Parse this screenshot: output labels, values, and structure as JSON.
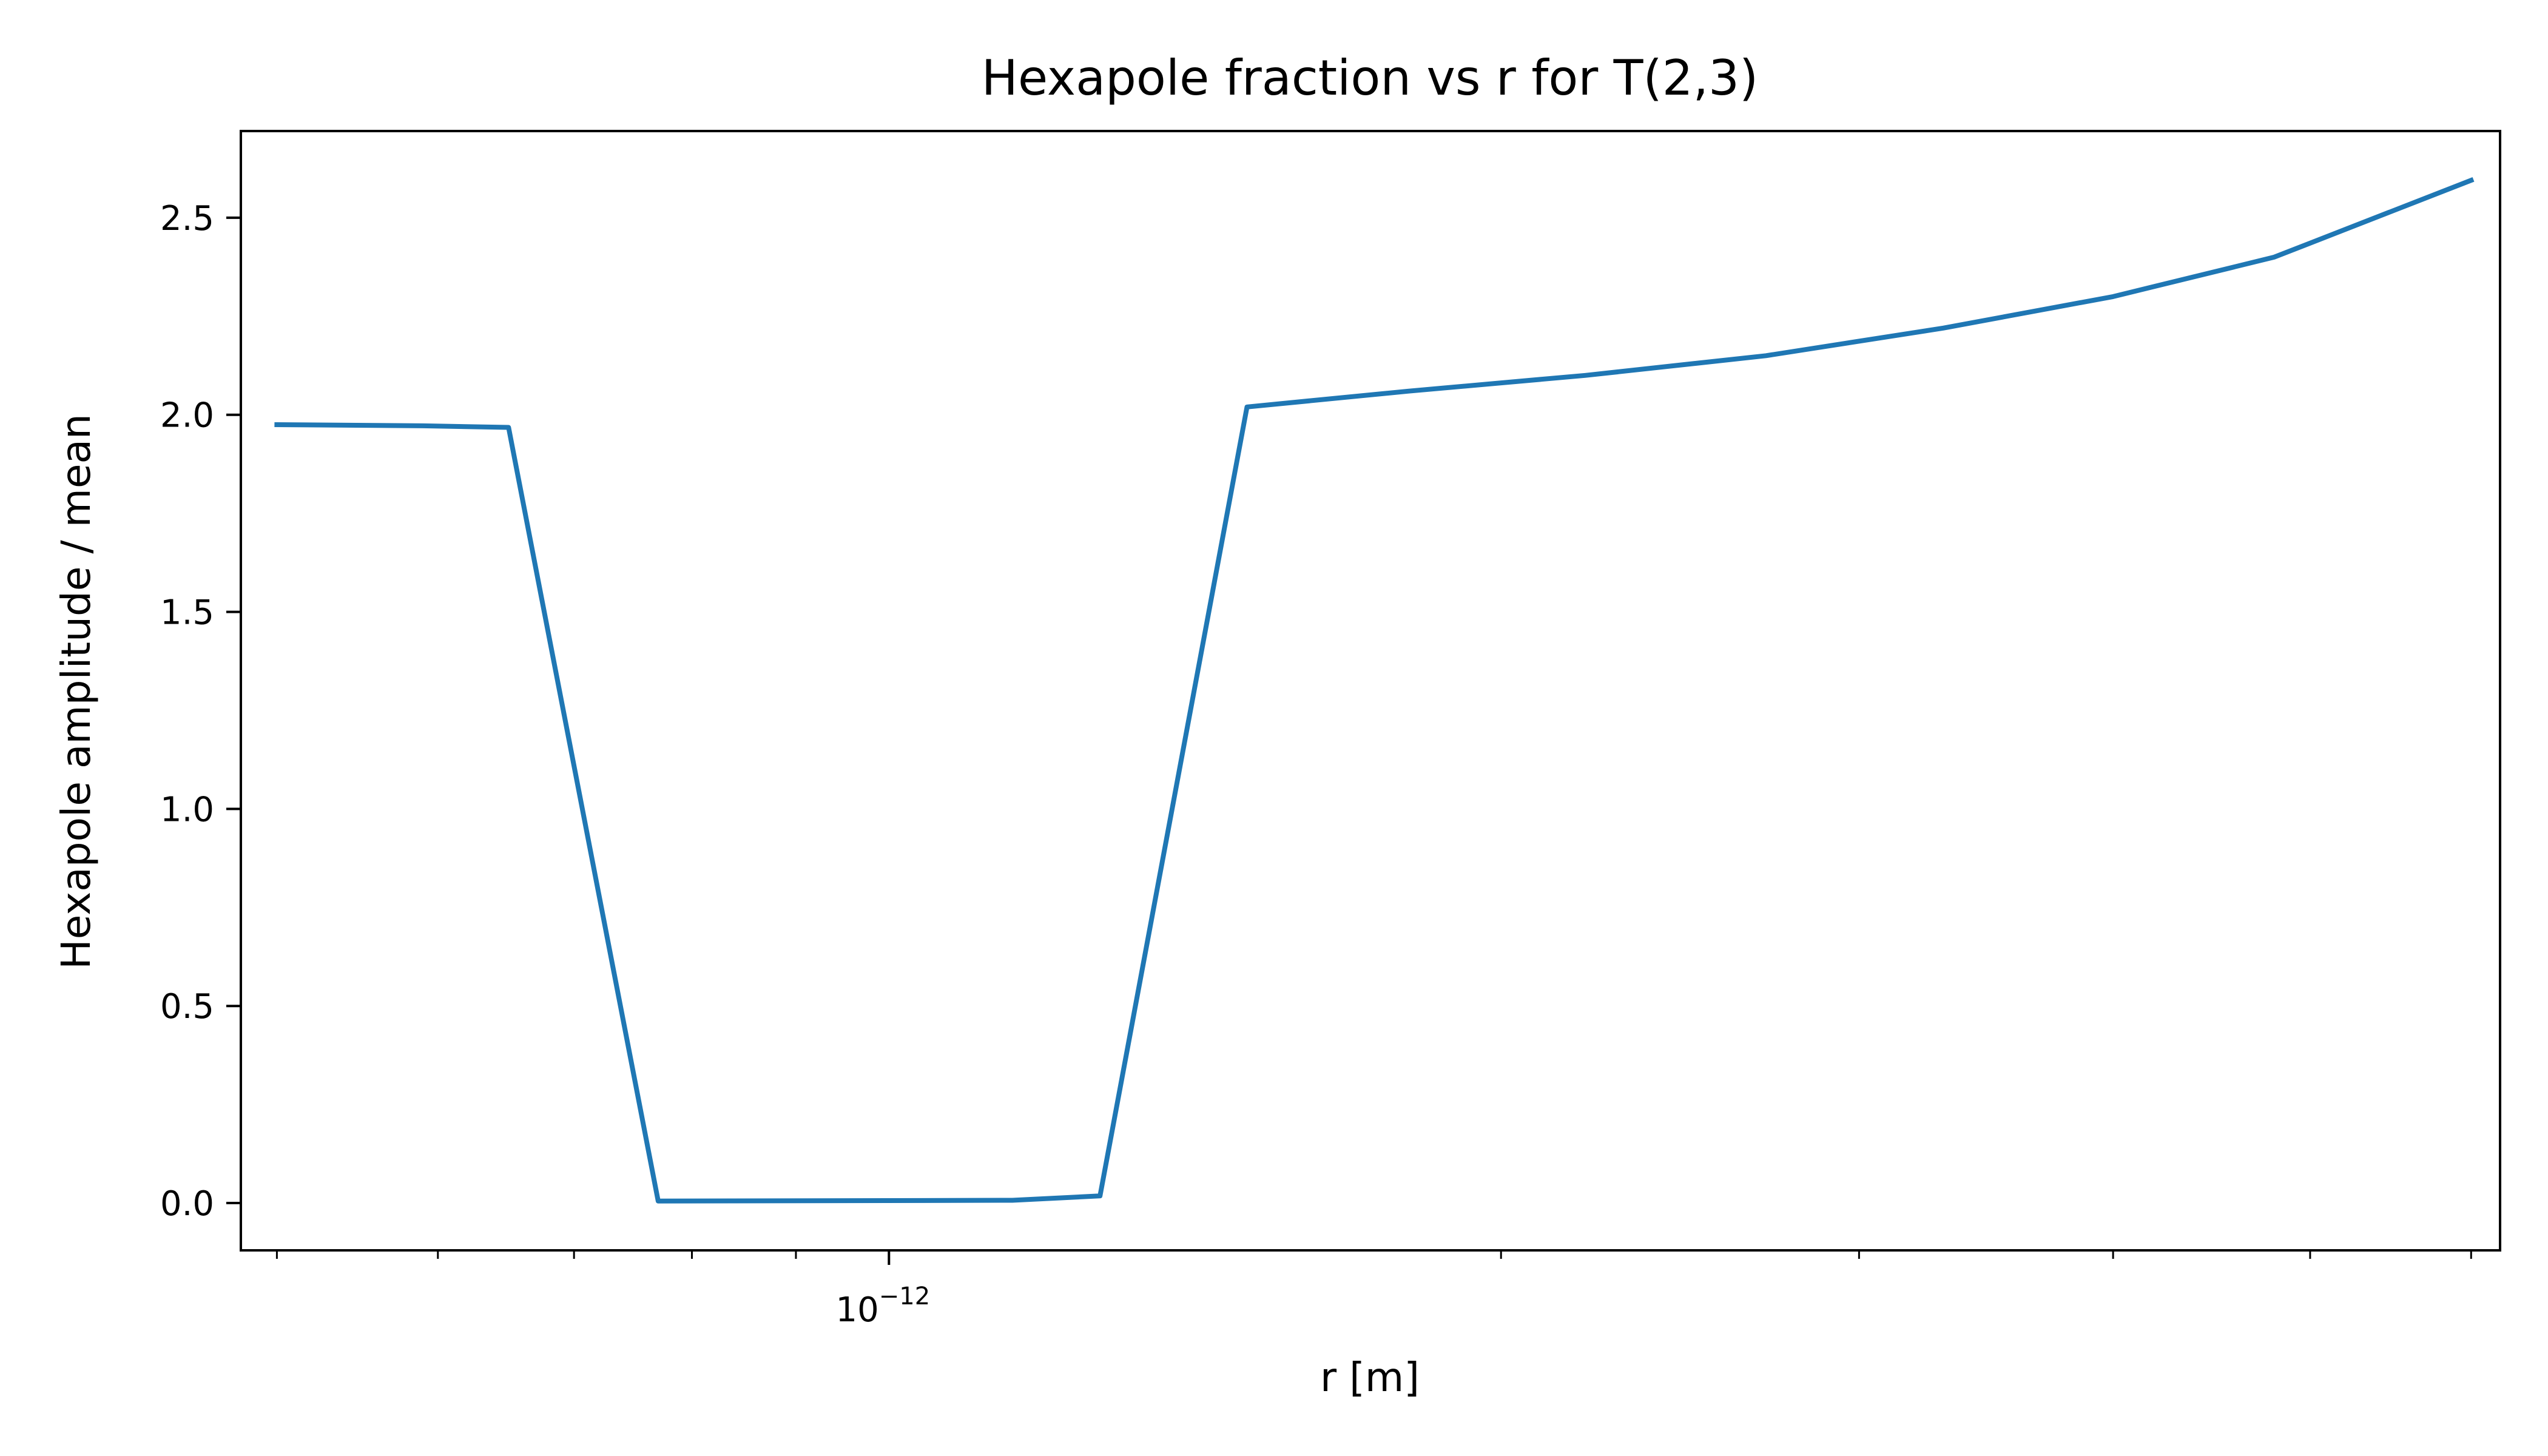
{
  "chart_data": {
    "type": "line",
    "title": "Hexapole fraction vs r for T(2,3)",
    "xlabel": "r [m]",
    "ylabel": "Hexapole amplitude / mean",
    "x_scale": "log",
    "xlim": [
      4.8e-13,
      6.2e-12
    ],
    "ylim": [
      -0.12,
      2.72
    ],
    "grid": false,
    "x_major_ticks": [
      {
        "value": 1e-12,
        "base": "10",
        "exponent": "−12"
      }
    ],
    "x_minor_ticks": [
      5e-13,
      6e-13,
      7e-13,
      8e-13,
      9e-13,
      2e-12,
      3e-12,
      4e-12,
      5e-12,
      6e-12
    ],
    "y_ticks": [
      {
        "value": 0.0,
        "label": "0.0"
      },
      {
        "value": 0.5,
        "label": "0.5"
      },
      {
        "value": 1.0,
        "label": "1.0"
      },
      {
        "value": 1.5,
        "label": "1.5"
      },
      {
        "value": 2.0,
        "label": "2.0"
      },
      {
        "value": 2.5,
        "label": "2.5"
      }
    ],
    "series": [
      {
        "color": "#1f77b4",
        "points": [
          [
            5e-13,
            1.975
          ],
          [
            5.9e-13,
            1.972
          ],
          [
            6.5e-13,
            1.968
          ],
          [
            7.7e-13,
            0.005
          ],
          [
            1.15e-12,
            0.007
          ],
          [
            1.27e-12,
            0.018
          ],
          [
            1.5e-12,
            2.02
          ],
          [
            1.8e-12,
            2.06
          ],
          [
            2.2e-12,
            2.1
          ],
          [
            2.7e-12,
            2.15
          ],
          [
            3.3e-12,
            2.22
          ],
          [
            4e-12,
            2.3
          ],
          [
            4.8e-12,
            2.4
          ],
          [
            6e-12,
            2.595
          ]
        ]
      }
    ]
  }
}
